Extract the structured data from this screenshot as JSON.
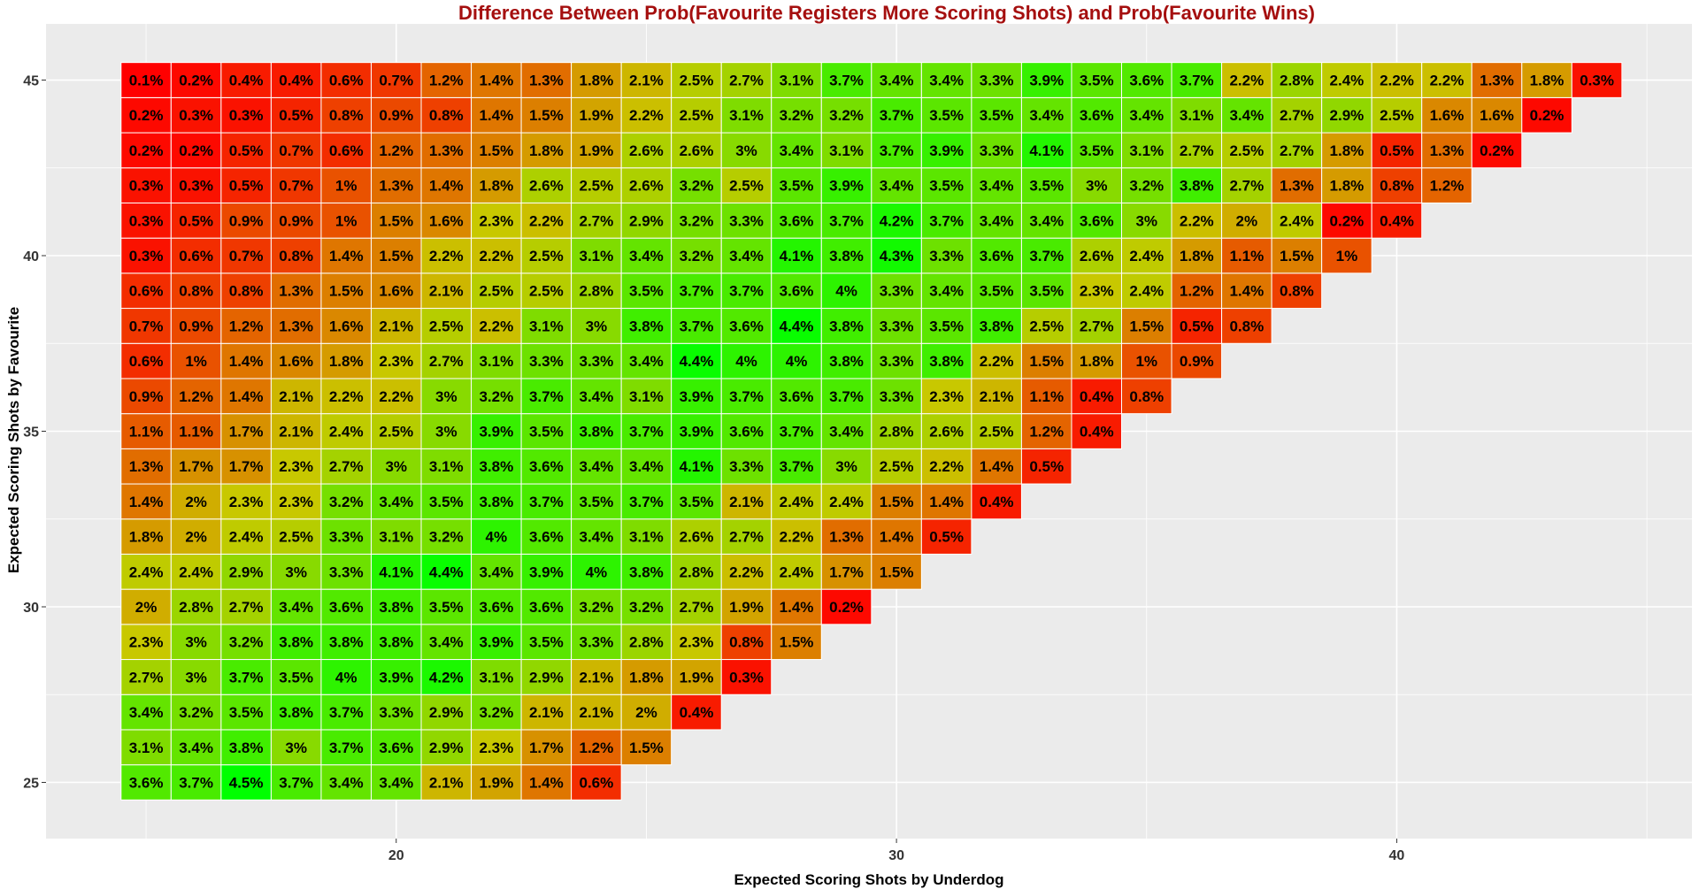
{
  "chart_data": {
    "type": "heatmap",
    "title": "Difference Between Prob(Favourite Registers More Scoring Shots) and Prob(Favourite Wins)",
    "xlabel": "Expected Scoring Shots by Underdog",
    "ylabel": "Expected Scoring Shots by Favourite",
    "x_ticks": [
      20,
      30,
      40
    ],
    "y_ticks": [
      25,
      30,
      35,
      40,
      45
    ],
    "xlim": [
      13,
      45.9
    ],
    "ylim": [
      23.4,
      46.6
    ],
    "x_start": 15,
    "y_start": 25,
    "value_unit": "%",
    "colors": {
      "low": "#ff0000",
      "mid": "#c8c800",
      "high": "#00ff00",
      "panel_background": "#ebebeb",
      "grid": "#ffffff",
      "title": "#a50f0f"
    },
    "rows": [
      {
        "y": 25,
        "values": [
          "3.6%",
          "3.7%",
          "4.5%",
          "3.7%",
          "3.4%",
          "3.4%",
          "2.1%",
          "1.9%",
          "1.4%",
          "0.6%"
        ]
      },
      {
        "y": 26,
        "values": [
          "3.1%",
          "3.4%",
          "3.8%",
          "3%",
          "3.7%",
          "3.6%",
          "2.9%",
          "2.3%",
          "1.7%",
          "1.2%",
          "1.5%"
        ]
      },
      {
        "y": 27,
        "values": [
          "3.4%",
          "3.2%",
          "3.5%",
          "3.8%",
          "3.7%",
          "3.3%",
          "2.9%",
          "3.2%",
          "2.1%",
          "2.1%",
          "2%",
          "0.4%"
        ]
      },
      {
        "y": 28,
        "values": [
          "2.7%",
          "3%",
          "3.7%",
          "3.5%",
          "4%",
          "3.9%",
          "4.2%",
          "3.1%",
          "2.9%",
          "2.1%",
          "1.8%",
          "1.9%",
          "0.3%"
        ]
      },
      {
        "y": 29,
        "values": [
          "2.3%",
          "3%",
          "3.2%",
          "3.8%",
          "3.8%",
          "3.8%",
          "3.4%",
          "3.9%",
          "3.5%",
          "3.3%",
          "2.8%",
          "2.3%",
          "0.8%",
          "1.5%"
        ]
      },
      {
        "y": 30,
        "values": [
          "2%",
          "2.8%",
          "2.7%",
          "3.4%",
          "3.6%",
          "3.8%",
          "3.5%",
          "3.6%",
          "3.6%",
          "3.2%",
          "3.2%",
          "2.7%",
          "1.9%",
          "1.4%",
          "0.2%"
        ]
      },
      {
        "y": 31,
        "values": [
          "2.4%",
          "2.4%",
          "2.9%",
          "3%",
          "3.3%",
          "4.1%",
          "4.4%",
          "3.4%",
          "3.9%",
          "4%",
          "3.8%",
          "2.8%",
          "2.2%",
          "2.4%",
          "1.7%",
          "1.5%"
        ]
      },
      {
        "y": 32,
        "values": [
          "1.8%",
          "2%",
          "2.4%",
          "2.5%",
          "3.3%",
          "3.1%",
          "3.2%",
          "4%",
          "3.6%",
          "3.4%",
          "3.1%",
          "2.6%",
          "2.7%",
          "2.2%",
          "1.3%",
          "1.4%",
          "0.5%"
        ]
      },
      {
        "y": 33,
        "values": [
          "1.4%",
          "2%",
          "2.3%",
          "2.3%",
          "3.2%",
          "3.4%",
          "3.5%",
          "3.8%",
          "3.7%",
          "3.5%",
          "3.7%",
          "3.5%",
          "2.1%",
          "2.4%",
          "2.4%",
          "1.5%",
          "1.4%",
          "0.4%"
        ]
      },
      {
        "y": 34,
        "values": [
          "1.3%",
          "1.7%",
          "1.7%",
          "2.3%",
          "2.7%",
          "3%",
          "3.1%",
          "3.8%",
          "3.6%",
          "3.4%",
          "3.4%",
          "4.1%",
          "3.3%",
          "3.7%",
          "3%",
          "2.5%",
          "2.2%",
          "1.4%",
          "0.5%"
        ]
      },
      {
        "y": 35,
        "values": [
          "1.1%",
          "1.1%",
          "1.7%",
          "2.1%",
          "2.4%",
          "2.5%",
          "3%",
          "3.9%",
          "3.5%",
          "3.8%",
          "3.7%",
          "3.9%",
          "3.6%",
          "3.7%",
          "3.4%",
          "2.8%",
          "2.6%",
          "2.5%",
          "1.2%",
          "0.4%"
        ]
      },
      {
        "y": 36,
        "values": [
          "0.9%",
          "1.2%",
          "1.4%",
          "2.1%",
          "2.2%",
          "2.2%",
          "3%",
          "3.2%",
          "3.7%",
          "3.4%",
          "3.1%",
          "3.9%",
          "3.7%",
          "3.6%",
          "3.7%",
          "3.3%",
          "2.3%",
          "2.1%",
          "1.1%",
          "0.4%",
          "0.8%"
        ]
      },
      {
        "y": 37,
        "values": [
          "0.6%",
          "1%",
          "1.4%",
          "1.6%",
          "1.8%",
          "2.3%",
          "2.7%",
          "3.1%",
          "3.3%",
          "3.3%",
          "3.4%",
          "4.4%",
          "4%",
          "4%",
          "3.8%",
          "3.3%",
          "3.8%",
          "2.2%",
          "1.5%",
          "1.8%",
          "1%",
          "0.9%"
        ]
      },
      {
        "y": 38,
        "values": [
          "0.7%",
          "0.9%",
          "1.2%",
          "1.3%",
          "1.6%",
          "2.1%",
          "2.5%",
          "2.2%",
          "3.1%",
          "3%",
          "3.8%",
          "3.7%",
          "3.6%",
          "4.4%",
          "3.8%",
          "3.3%",
          "3.5%",
          "3.8%",
          "2.5%",
          "2.7%",
          "1.5%",
          "0.5%",
          "0.8%"
        ]
      },
      {
        "y": 39,
        "values": [
          "0.6%",
          "0.8%",
          "0.8%",
          "1.3%",
          "1.5%",
          "1.6%",
          "2.1%",
          "2.5%",
          "2.5%",
          "2.8%",
          "3.5%",
          "3.7%",
          "3.7%",
          "3.6%",
          "4%",
          "3.3%",
          "3.4%",
          "3.5%",
          "3.5%",
          "2.3%",
          "2.4%",
          "1.2%",
          "1.4%",
          "0.8%"
        ]
      },
      {
        "y": 40,
        "values": [
          "0.3%",
          "0.6%",
          "0.7%",
          "0.8%",
          "1.4%",
          "1.5%",
          "2.2%",
          "2.2%",
          "2.5%",
          "3.1%",
          "3.4%",
          "3.2%",
          "3.4%",
          "4.1%",
          "3.8%",
          "4.3%",
          "3.3%",
          "3.6%",
          "3.7%",
          "2.6%",
          "2.4%",
          "1.8%",
          "1.1%",
          "1.5%",
          "1%"
        ]
      },
      {
        "y": 41,
        "values": [
          "0.3%",
          "0.5%",
          "0.9%",
          "0.9%",
          "1%",
          "1.5%",
          "1.6%",
          "2.3%",
          "2.2%",
          "2.7%",
          "2.9%",
          "3.2%",
          "3.3%",
          "3.6%",
          "3.7%",
          "4.2%",
          "3.7%",
          "3.4%",
          "3.4%",
          "3.6%",
          "3%",
          "2.2%",
          "2%",
          "2.4%",
          "0.2%",
          "0.4%"
        ]
      },
      {
        "y": 42,
        "values": [
          "0.3%",
          "0.3%",
          "0.5%",
          "0.7%",
          "1%",
          "1.3%",
          "1.4%",
          "1.8%",
          "2.6%",
          "2.5%",
          "2.6%",
          "3.2%",
          "2.5%",
          "3.5%",
          "3.9%",
          "3.4%",
          "3.5%",
          "3.4%",
          "3.5%",
          "3%",
          "3.2%",
          "3.8%",
          "2.7%",
          "1.3%",
          "1.8%",
          "0.8%",
          "1.2%"
        ]
      },
      {
        "y": 43,
        "values": [
          "0.2%",
          "0.2%",
          "0.5%",
          "0.7%",
          "0.6%",
          "1.2%",
          "1.3%",
          "1.5%",
          "1.8%",
          "1.9%",
          "2.6%",
          "2.6%",
          "3%",
          "3.4%",
          "3.1%",
          "3.7%",
          "3.9%",
          "3.3%",
          "4.1%",
          "3.5%",
          "3.1%",
          "2.7%",
          "2.5%",
          "2.7%",
          "1.8%",
          "0.5%",
          "1.3%",
          "0.2%"
        ]
      },
      {
        "y": 44,
        "values": [
          "0.2%",
          "0.3%",
          "0.3%",
          "0.5%",
          "0.8%",
          "0.9%",
          "0.8%",
          "1.4%",
          "1.5%",
          "1.9%",
          "2.2%",
          "2.5%",
          "3.1%",
          "3.2%",
          "3.2%",
          "3.7%",
          "3.5%",
          "3.5%",
          "3.4%",
          "3.6%",
          "3.4%",
          "3.1%",
          "3.4%",
          "2.7%",
          "2.9%",
          "2.5%",
          "1.6%",
          "1.6%",
          "0.2%"
        ]
      },
      {
        "y": 45,
        "values": [
          "0.1%",
          "0.2%",
          "0.4%",
          "0.4%",
          "0.6%",
          "0.7%",
          "1.2%",
          "1.4%",
          "1.3%",
          "1.8%",
          "2.1%",
          "2.5%",
          "2.7%",
          "3.1%",
          "3.7%",
          "3.4%",
          "3.4%",
          "3.3%",
          "3.9%",
          "3.5%",
          "3.6%",
          "3.7%",
          "2.2%",
          "2.8%",
          "2.4%",
          "2.2%",
          "2.2%",
          "1.3%",
          "1.8%",
          "0.3%"
        ]
      }
    ]
  }
}
